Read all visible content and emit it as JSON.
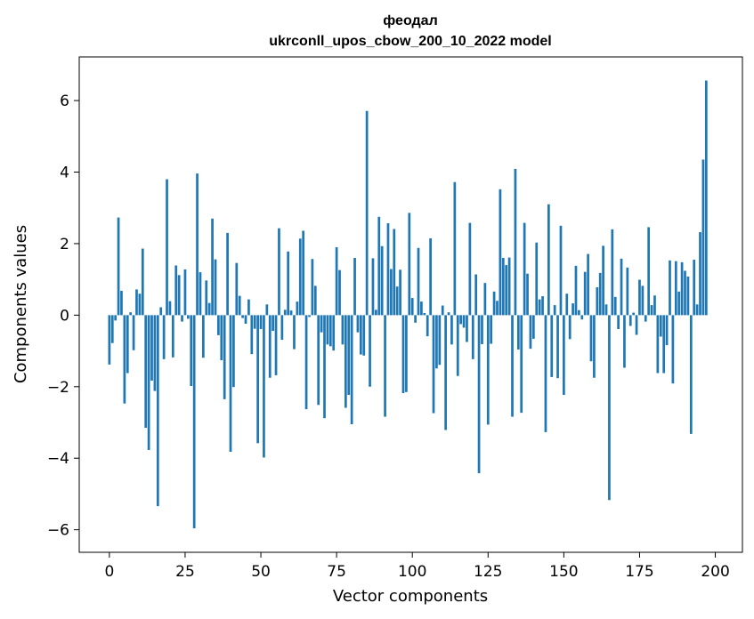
{
  "chart_data": {
    "type": "bar",
    "title": "феодал",
    "subtitle": "ukrconll_upos_cbow_200_10_2022 model",
    "xlabel": "Vector components",
    "ylabel": "Components values",
    "xlim": [
      -9.95,
      208.95
    ],
    "ylim": [
      -6.63,
      7.22
    ],
    "xticks": [
      0,
      25,
      50,
      75,
      100,
      125,
      150,
      175,
      200
    ],
    "yticks": [
      -6,
      -4,
      -2,
      0,
      2,
      4,
      6
    ],
    "ytick_labels": [
      "−6",
      "−4",
      "−2",
      "0",
      "2",
      "4",
      "6"
    ],
    "grid": false,
    "color": "#1f77b4",
    "values": [
      -1.38,
      -0.78,
      -0.15,
      2.73,
      0.68,
      -2.47,
      -1.62,
      0.08,
      -0.98,
      0.72,
      0.6,
      1.86,
      -3.15,
      -3.77,
      -1.83,
      -2.12,
      -5.34,
      0.22,
      -1.23,
      3.8,
      0.39,
      -1.18,
      1.39,
      1.12,
      -0.18,
      1.28,
      -0.1,
      -1.98,
      -5.96,
      3.96,
      1.2,
      -1.19,
      0.97,
      0.34,
      2.7,
      1.56,
      -0.56,
      -1.26,
      -2.35,
      2.3,
      -3.82,
      -2.01,
      1.46,
      0.54,
      -0.08,
      -0.24,
      0.44,
      -1.09,
      -0.38,
      -3.58,
      -0.39,
      -3.98,
      0.3,
      -1.75,
      -0.44,
      -1.68,
      2.43,
      -0.69,
      0.15,
      1.78,
      0.13,
      -0.95,
      0.38,
      2.14,
      2.36,
      -2.63,
      -0.05,
      1.57,
      0.82,
      -2.51,
      -0.48,
      -2.88,
      -0.82,
      -0.87,
      -0.99,
      1.9,
      1.26,
      -0.82,
      -2.59,
      -2.23,
      -3.05,
      1.6,
      -0.48,
      -1.1,
      -1.13,
      5.71,
      -2.0,
      1.59,
      0.15,
      2.75,
      1.93,
      -2.84,
      2.57,
      1.29,
      2.41,
      0.8,
      1.27,
      -2.18,
      -2.15,
      2.86,
      0.48,
      -0.21,
      1.88,
      0.38,
      0.06,
      -0.59,
      2.15,
      -2.74,
      -1.49,
      -1.39,
      0.27,
      -3.21,
      0.08,
      -0.82,
      3.72,
      -1.7,
      -0.25,
      -0.35,
      -0.75,
      2.58,
      -1.23,
      1.14,
      -4.42,
      -0.81,
      0.9,
      -3.06,
      -0.8,
      0.66,
      0.4,
      3.52,
      1.6,
      1.4,
      1.61,
      -2.84,
      4.09,
      -0.96,
      -2.73,
      2.58,
      1.16,
      -0.94,
      -0.66,
      2.03,
      0.44,
      0.53,
      -3.27,
      3.1,
      -1.73,
      0.28,
      -1.76,
      2.5,
      -2.23,
      0.6,
      -0.67,
      0.33,
      1.38,
      0.14,
      -0.12,
      1.21,
      1.71,
      -1.29,
      -1.75,
      0.78,
      1.18,
      1.94,
      0.3,
      -5.17,
      2.4,
      0.51,
      -0.39,
      1.58,
      -1.47,
      1.33,
      -0.3,
      0.07,
      -0.55,
      0.99,
      0.82,
      -0.18,
      2.46,
      0.28,
      0.55,
      -1.62,
      -0.6,
      -1.62,
      -0.84,
      1.53,
      -1.91,
      1.51,
      0.66,
      1.48,
      1.24,
      1.08,
      -3.32,
      1.55,
      0.3,
      2.32,
      4.35,
      6.56
    ]
  }
}
